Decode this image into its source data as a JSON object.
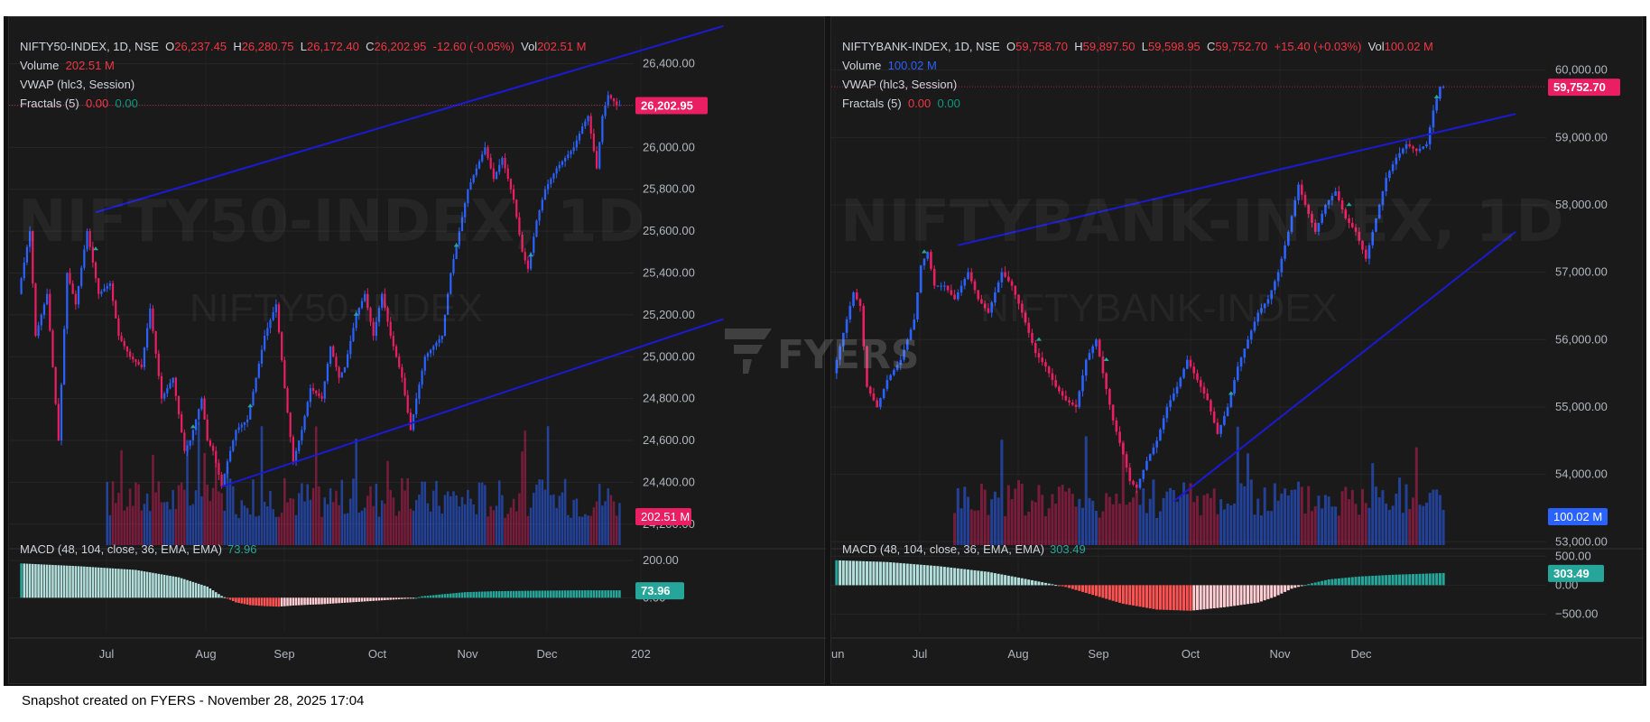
{
  "footer": "Snapshot created on FYERS - November 28, 2025 17:04",
  "logo": {
    "text": "FYERS"
  },
  "colors": {
    "up": "#2962ff",
    "down": "#e91e63",
    "trend": "#1a1ad6",
    "macd_pos_strong": "#26a69a",
    "macd_pos_weak": "#b2dfdb",
    "macd_neg_strong": "#ff5252",
    "macd_neg_weak": "#ffcdd2",
    "price_tag": "#e91e63",
    "vol_tag_left": "#e91e63",
    "vol_tag_right": "#2962ff"
  },
  "charts": [
    {
      "symbol": "NIFTY50-INDEX, 1D, NSE",
      "o_label": "O",
      "o_val": "26,237.45",
      "h_label": "H",
      "h_val": "26,280.75",
      "l_label": "L",
      "l_val": "26,172.40",
      "c_label": "C",
      "c_val": "26,202.95",
      "change": "-12.60 (-0.05%)",
      "vol_label": "Vol",
      "vol_val": "202.51 M",
      "volume_label": "Volume",
      "volume_val": "202.51 M",
      "vwap_label": "VWAP (hlc3, Session)",
      "fractals_label": "Fractals (5)",
      "fractals_a": "0.00",
      "fractals_b": "0.00",
      "macd_label": "MACD (48, 104, close, 36, EMA, EMA)",
      "macd_val": "73.96",
      "watermark": "NIFTY50-INDEX, 1D",
      "watermark_sub": "NIFTY50-INDEX",
      "price_tag": "26,202.95",
      "vol_tag": "202.51 M",
      "macd_tag": "73.96"
    },
    {
      "symbol": "NIFTYBANK-INDEX, 1D, NSE",
      "o_label": "O",
      "o_val": "59,758.70",
      "h_label": "H",
      "h_val": "59,897.50",
      "l_label": "L",
      "l_val": "59,598.95",
      "c_label": "C",
      "c_val": "59,752.70",
      "change": "+15.40 (+0.03%)",
      "vol_label": "Vol",
      "vol_val": "100.02 M",
      "volume_label": "Volume",
      "volume_val": "100.02 M",
      "vwap_label": "VWAP (hlc3, Session)",
      "fractals_label": "Fractals (5)",
      "fractals_a": "0.00",
      "fractals_b": "0.00",
      "macd_label": "MACD (48, 104, close, 36, EMA, EMA)",
      "macd_val": "303.49",
      "watermark": "NIFTYBANK-INDEX, 1D",
      "watermark_sub": "NIFTYBANK-INDEX",
      "price_tag": "59,752.70",
      "vol_tag": "100.02 M",
      "macd_tag": "303.49"
    }
  ],
  "chart_data": [
    {
      "type": "candlestick",
      "title": "NIFTY50-INDEX, 1D, NSE",
      "price_ticks": [
        "26,400.00",
        "26,200.00",
        "26,000.00",
        "25,800.00",
        "25,600.00",
        "25,400.00",
        "25,200.00",
        "25,000.00",
        "24,800.00",
        "24,600.00",
        "24,400.00",
        "24,200.00"
      ],
      "price_tick_values": [
        26400,
        26200,
        26000,
        25800,
        25600,
        25400,
        25200,
        25000,
        24800,
        24600,
        24400,
        24200
      ],
      "macd_ticks": [
        "200.00",
        "0.00"
      ],
      "macd_tick_values": [
        200,
        0
      ],
      "time_labels": [
        "Jul",
        "Aug",
        "Sep",
        "Oct",
        "Nov",
        "Dec",
        "202"
      ],
      "ylim": [
        24100,
        26450
      ],
      "macd_ylim": [
        -120,
        230
      ],
      "path": [
        [
          0,
          25300
        ],
        [
          4,
          25600
        ],
        [
          6,
          25100
        ],
        [
          10,
          25300
        ],
        [
          14,
          24600
        ],
        [
          17,
          25400
        ],
        [
          20,
          25250
        ],
        [
          24,
          25600
        ],
        [
          28,
          25300
        ],
        [
          32,
          25350
        ],
        [
          35,
          25100
        ],
        [
          39,
          25000
        ],
        [
          43,
          24950
        ],
        [
          46,
          25230
        ],
        [
          50,
          24800
        ],
        [
          54,
          24900
        ],
        [
          58,
          24550
        ],
        [
          60,
          24600
        ],
        [
          64,
          24800
        ],
        [
          66,
          24600
        ],
        [
          68,
          24550
        ],
        [
          71,
          24380
        ],
        [
          73,
          24500
        ],
        [
          76,
          24650
        ],
        [
          80,
          24700
        ],
        [
          83,
          24900
        ],
        [
          86,
          25100
        ],
        [
          90,
          25250
        ],
        [
          93,
          24850
        ],
        [
          96,
          24500
        ],
        [
          99,
          24650
        ],
        [
          102,
          24850
        ],
        [
          106,
          24800
        ],
        [
          109,
          25050
        ],
        [
          112,
          24900
        ],
        [
          114,
          24950
        ],
        [
          118,
          25200
        ],
        [
          121,
          25300
        ],
        [
          124,
          25100
        ],
        [
          127,
          25300
        ],
        [
          130,
          25100
        ],
        [
          134,
          24900
        ],
        [
          137,
          24650
        ],
        [
          139,
          24800
        ],
        [
          142,
          25000
        ],
        [
          145,
          25050
        ],
        [
          148,
          25100
        ],
        [
          151,
          25400
        ],
        [
          154,
          25600
        ],
        [
          157,
          25800
        ],
        [
          160,
          25900
        ],
        [
          163,
          26000
        ],
        [
          166,
          25850
        ],
        [
          169,
          25950
        ],
        [
          173,
          25750
        ],
        [
          176,
          25500
        ],
        [
          178,
          25420
        ],
        [
          181,
          25650
        ],
        [
          184,
          25800
        ],
        [
          188,
          25900
        ],
        [
          191,
          25950
        ],
        [
          194,
          26000
        ],
        [
          197,
          26100
        ],
        [
          199,
          26150
        ],
        [
          202,
          25900
        ],
        [
          204,
          26150
        ],
        [
          206,
          26250
        ],
        [
          208,
          26220
        ],
        [
          209,
          26202
        ]
      ],
      "volume": [
        70,
        70,
        70,
        70,
        70,
        70,
        70,
        70,
        70,
        70,
        70,
        70,
        70,
        70,
        70,
        70,
        70,
        70,
        70,
        70,
        70,
        70,
        70,
        70,
        70,
        70,
        70,
        70,
        70,
        70,
        70,
        70,
        70,
        70,
        70,
        70,
        70,
        70,
        70,
        70,
        70,
        70,
        70,
        70,
        70,
        70,
        70,
        70,
        70,
        70,
        70,
        70,
        70,
        70,
        70,
        70,
        70,
        70,
        70,
        70,
        70,
        70,
        70,
        70,
        70,
        70,
        70,
        70,
        70,
        70,
        70,
        70,
        70,
        70,
        70,
        70,
        70,
        70,
        70,
        70,
        70,
        70,
        70,
        70,
        70,
        70,
        70,
        70,
        70,
        70,
        70,
        70,
        70,
        70,
        70,
        70,
        70,
        70,
        70,
        70,
        70,
        70,
        70,
        70,
        70,
        70,
        70,
        70,
        70,
        70,
        70,
        70,
        70,
        70,
        70,
        70,
        70,
        70,
        70,
        70,
        70,
        70,
        70,
        70,
        70,
        70,
        70,
        70,
        70,
        70,
        70,
        70,
        70,
        70,
        70,
        70,
        70,
        70,
        70,
        70,
        70,
        70,
        70,
        70,
        70,
        70,
        70,
        70,
        70,
        70,
        70,
        70,
        70,
        70,
        70,
        70,
        70,
        70,
        70,
        70,
        70,
        70,
        70,
        70,
        70,
        70,
        70,
        70,
        70,
        70,
        70,
        70,
        70,
        70,
        70,
        70,
        70,
        70,
        70,
        70,
        70,
        70,
        70,
        70,
        70,
        70,
        70,
        70,
        70,
        70,
        70,
        70,
        70,
        70,
        70,
        70,
        70,
        70,
        70,
        70,
        70,
        70,
        70,
        70,
        70,
        70,
        70,
        70,
        70,
        70
      ],
      "vol_start": 30,
      "macd_path": [
        [
          0,
          185
        ],
        [
          20,
          170
        ],
        [
          40,
          150
        ],
        [
          55,
          110
        ],
        [
          65,
          60
        ],
        [
          70,
          10
        ],
        [
          75,
          -25
        ],
        [
          80,
          -40
        ],
        [
          85,
          -45
        ],
        [
          90,
          -48
        ],
        [
          95,
          -42
        ],
        [
          100,
          -38
        ],
        [
          105,
          -35
        ],
        [
          110,
          -30
        ],
        [
          115,
          -25
        ],
        [
          120,
          -20
        ],
        [
          125,
          -15
        ],
        [
          130,
          -10
        ],
        [
          135,
          -5
        ],
        [
          138,
          0
        ],
        [
          140,
          8
        ],
        [
          148,
          20
        ],
        [
          155,
          30
        ],
        [
          165,
          35
        ],
        [
          180,
          38
        ],
        [
          195,
          40
        ],
        [
          209,
          40
        ]
      ],
      "trend_upper": [
        [
          26,
          25690
        ],
        [
          209,
          26400
        ]
      ],
      "trend_lower": [
        [
          70,
          24380
        ],
        [
          209,
          25000
        ]
      ]
    },
    {
      "type": "candlestick",
      "title": "NIFTYBANK-INDEX, 1D, NSE",
      "price_ticks": [
        "60,000.00",
        "59,000.00",
        "58,000.00",
        "57,000.00",
        "56,000.00",
        "55,000.00",
        "54,000.00",
        "53,000.00"
      ],
      "price_tick_values": [
        60000,
        59000,
        58000,
        57000,
        56000,
        55000,
        54000,
        53000
      ],
      "macd_ticks": [
        "500.00",
        "0.00",
        "−500.00"
      ],
      "macd_tick_values": [
        500,
        0,
        -500
      ],
      "time_labels": [
        "Jun",
        "Jul",
        "Aug",
        "Sep",
        "Oct",
        "Nov",
        "Dec"
      ],
      "ylim": [
        52950,
        60250
      ],
      "macd_ylim": [
        -600,
        520
      ],
      "path": [
        [
          0,
          55500
        ],
        [
          4,
          56300
        ],
        [
          6,
          56700
        ],
        [
          8,
          56500
        ],
        [
          10,
          55300
        ],
        [
          13,
          55000
        ],
        [
          16,
          55400
        ],
        [
          20,
          55700
        ],
        [
          24,
          56300
        ],
        [
          26,
          57100
        ],
        [
          28,
          57300
        ],
        [
          30,
          56800
        ],
        [
          33,
          56800
        ],
        [
          36,
          56600
        ],
        [
          40,
          57000
        ],
        [
          43,
          56600
        ],
        [
          46,
          56400
        ],
        [
          50,
          57000
        ],
        [
          53,
          56800
        ],
        [
          56,
          56400
        ],
        [
          60,
          55800
        ],
        [
          63,
          55600
        ],
        [
          66,
          55300
        ],
        [
          69,
          55100
        ],
        [
          72,
          55000
        ],
        [
          75,
          55700
        ],
        [
          78,
          56000
        ],
        [
          80,
          55500
        ],
        [
          83,
          54800
        ],
        [
          86,
          54300
        ],
        [
          88,
          53900
        ],
        [
          90,
          53800
        ],
        [
          93,
          54200
        ],
        [
          96,
          54500
        ],
        [
          99,
          55000
        ],
        [
          102,
          55300
        ],
        [
          105,
          55700
        ],
        [
          108,
          55400
        ],
        [
          111,
          55100
        ],
        [
          114,
          54600
        ],
        [
          117,
          55000
        ],
        [
          120,
          55600
        ],
        [
          123,
          56000
        ],
        [
          126,
          56400
        ],
        [
          129,
          56600
        ],
        [
          132,
          57000
        ],
        [
          135,
          57600
        ],
        [
          138,
          58300
        ],
        [
          140,
          58000
        ],
        [
          143,
          57600
        ],
        [
          146,
          58000
        ],
        [
          149,
          58200
        ],
        [
          152,
          57800
        ],
        [
          155,
          57600
        ],
        [
          158,
          57200
        ],
        [
          161,
          57800
        ],
        [
          164,
          58400
        ],
        [
          167,
          58700
        ],
        [
          170,
          58900
        ],
        [
          173,
          58800
        ],
        [
          176,
          58900
        ],
        [
          178,
          59400
        ],
        [
          180,
          59752
        ]
      ],
      "volume": [],
      "vol_start": 35,
      "macd_path": [
        [
          0,
          430
        ],
        [
          15,
          400
        ],
        [
          30,
          330
        ],
        [
          45,
          230
        ],
        [
          55,
          120
        ],
        [
          62,
          40
        ],
        [
          68,
          -30
        ],
        [
          75,
          -150
        ],
        [
          85,
          -320
        ],
        [
          95,
          -420
        ],
        [
          105,
          -440
        ],
        [
          115,
          -380
        ],
        [
          125,
          -300
        ],
        [
          130,
          -200
        ],
        [
          135,
          -60
        ],
        [
          140,
          20
        ],
        [
          146,
          100
        ],
        [
          155,
          150
        ],
        [
          165,
          180
        ],
        [
          175,
          200
        ],
        [
          180,
          210
        ]
      ],
      "trend_upper": [
        [
          36,
          57400
        ],
        [
          180,
          59150
        ]
      ],
      "trend_lower": [
        [
          100,
          53600
        ],
        [
          180,
          56900
        ]
      ]
    }
  ]
}
